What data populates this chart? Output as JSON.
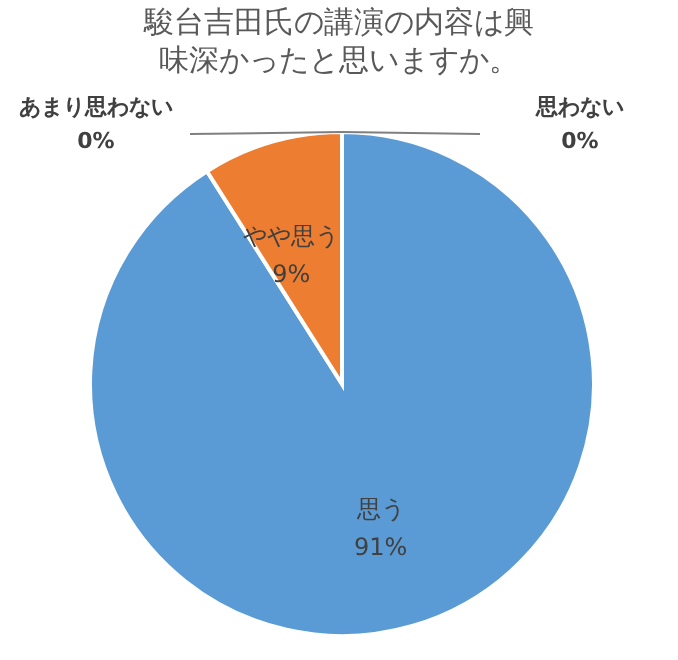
{
  "chart_data": {
    "type": "pie",
    "title": "駿台吉田氏の講演の内容は興味深かったと思いますか。",
    "categories": [
      "思う",
      "やや思う",
      "あまり思わない",
      "思わない"
    ],
    "values": [
      91,
      9,
      0,
      0
    ],
    "colors": [
      "#5b9bd5",
      "#ed7d31",
      "#a5a5a5",
      "#ffc000"
    ],
    "value_labels": [
      "91%",
      "9%",
      "0%",
      "0%"
    ]
  }
}
